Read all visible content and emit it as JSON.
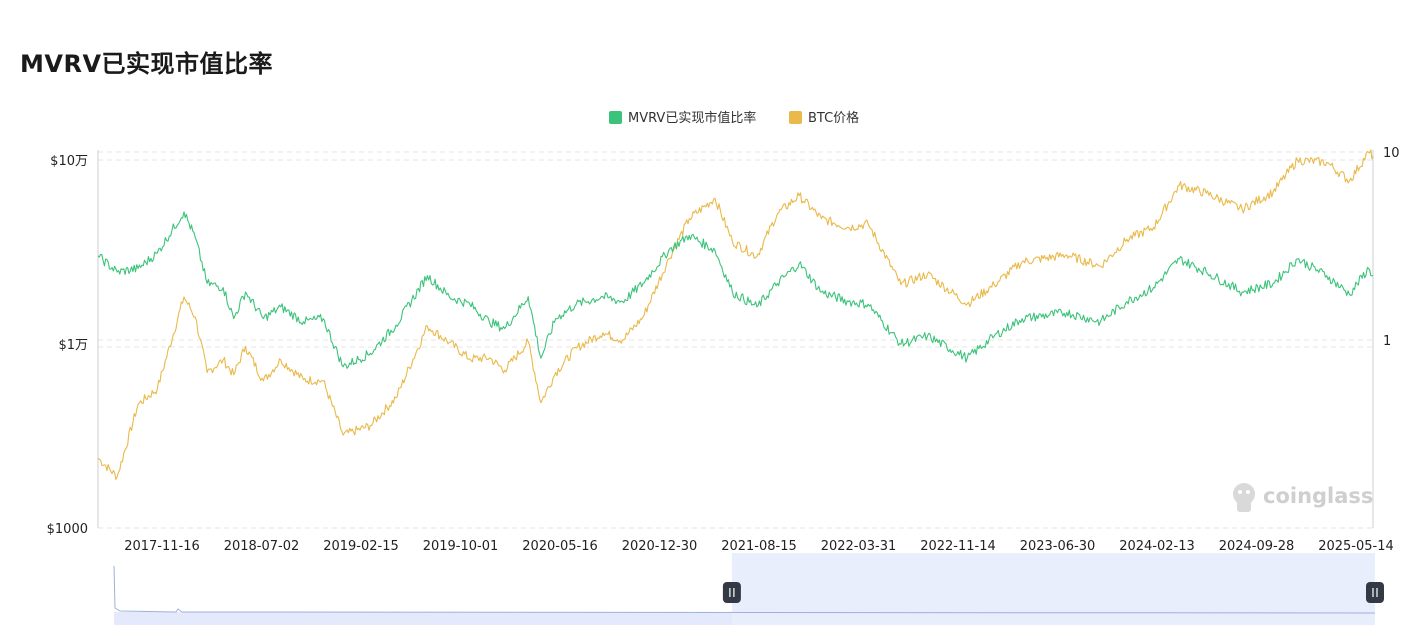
{
  "chart_data": {
    "type": "line",
    "title": "MVRV已实现市值比率",
    "legend_position": "top-center",
    "grid": true,
    "x_ticks": [
      "2017-11-16",
      "2018-07-02",
      "2019-02-15",
      "2019-10-01",
      "2020-05-16",
      "2020-12-30",
      "2021-08-15",
      "2022-03-31",
      "2022-11-14",
      "2023-06-30",
      "2024-02-13",
      "2024-09-28",
      "2025-05-14"
    ],
    "x_range": [
      "2017-06-01",
      "2025-06-01"
    ],
    "y_left": {
      "label": "",
      "scale": "log",
      "range": [
        1000,
        100000
      ],
      "ticks": [
        {
          "value": 100000,
          "label": "$10万"
        },
        {
          "value": 10000,
          "label": "$1万"
        },
        {
          "value": 1000,
          "label": "$1000"
        }
      ]
    },
    "y_right": {
      "label": "",
      "scale": "log",
      "ticks": [
        {
          "value": 10,
          "label": "10"
        },
        {
          "value": 1,
          "label": "1"
        }
      ]
    },
    "series": [
      {
        "name": "MVRV已实现市值比率",
        "color": "#3cc37a",
        "axis": "right",
        "points": [
          [
            "2017-06-01",
            2.8
          ],
          [
            "2017-07-15",
            2.3
          ],
          [
            "2017-09-01",
            2.4
          ],
          [
            "2017-10-15",
            2.9
          ],
          [
            "2017-12-15",
            4.8
          ],
          [
            "2018-01-10",
            3.5
          ],
          [
            "2018-02-06",
            2.0
          ],
          [
            "2018-03-15",
            1.9
          ],
          [
            "2018-04-08",
            1.3
          ],
          [
            "2018-05-05",
            1.8
          ],
          [
            "2018-06-15",
            1.3
          ],
          [
            "2018-07-25",
            1.5
          ],
          [
            "2018-09-15",
            1.25
          ],
          [
            "2018-10-30",
            1.3
          ],
          [
            "2018-12-15",
            0.72
          ],
          [
            "2019-02-15",
            0.85
          ],
          [
            "2019-04-15",
            1.2
          ],
          [
            "2019-06-26",
            2.2
          ],
          [
            "2019-08-15",
            1.7
          ],
          [
            "2019-10-01",
            1.55
          ],
          [
            "2019-11-15",
            1.25
          ],
          [
            "2019-12-20",
            1.15
          ],
          [
            "2020-02-12",
            1.7
          ],
          [
            "2020-03-12",
            0.8
          ],
          [
            "2020-04-15",
            1.3
          ],
          [
            "2020-06-01",
            1.55
          ],
          [
            "2020-08-01",
            1.7
          ],
          [
            "2020-09-15",
            1.6
          ],
          [
            "2020-11-01",
            2.0
          ],
          [
            "2020-12-30",
            3.0
          ],
          [
            "2021-02-15",
            3.6
          ],
          [
            "2021-04-15",
            3.0
          ],
          [
            "2021-05-25",
            1.8
          ],
          [
            "2021-07-20",
            1.5
          ],
          [
            "2021-09-05",
            2.0
          ],
          [
            "2021-10-25",
            2.55
          ],
          [
            "2021-12-15",
            1.8
          ],
          [
            "2022-02-15",
            1.6
          ],
          [
            "2022-04-01",
            1.55
          ],
          [
            "2022-06-15",
            0.95
          ],
          [
            "2022-08-15",
            1.05
          ],
          [
            "2022-11-14",
            0.8
          ],
          [
            "2023-01-15",
            1.05
          ],
          [
            "2023-03-20",
            1.3
          ],
          [
            "2023-06-30",
            1.4
          ],
          [
            "2023-09-15",
            1.25
          ],
          [
            "2023-11-15",
            1.6
          ],
          [
            "2024-01-15",
            1.9
          ],
          [
            "2024-03-14",
            2.7
          ],
          [
            "2024-05-15",
            2.3
          ],
          [
            "2024-08-05",
            1.8
          ],
          [
            "2024-10-15",
            2.0
          ],
          [
            "2024-12-10",
            2.7
          ],
          [
            "2025-02-15",
            2.2
          ],
          [
            "2025-04-08",
            1.75
          ],
          [
            "2025-05-22",
            2.4
          ],
          [
            "2025-06-01",
            2.2
          ]
        ]
      },
      {
        "name": "BTC价格",
        "color": "#e9b94a",
        "axis": "left",
        "points": [
          [
            "2017-06-01",
            2400
          ],
          [
            "2017-07-15",
            1900
          ],
          [
            "2017-09-01",
            4700
          ],
          [
            "2017-10-15",
            5700
          ],
          [
            "2017-12-15",
            18000
          ],
          [
            "2018-01-10",
            14000
          ],
          [
            "2018-02-06",
            7000
          ],
          [
            "2018-03-15",
            8200
          ],
          [
            "2018-04-08",
            6800
          ],
          [
            "2018-05-05",
            9700
          ],
          [
            "2018-06-15",
            6300
          ],
          [
            "2018-07-25",
            8200
          ],
          [
            "2018-09-15",
            6400
          ],
          [
            "2018-10-30",
            6300
          ],
          [
            "2018-12-15",
            3200
          ],
          [
            "2019-02-15",
            3600
          ],
          [
            "2019-04-15",
            5100
          ],
          [
            "2019-06-26",
            12500
          ],
          [
            "2019-08-15",
            10200
          ],
          [
            "2019-10-01",
            8300
          ],
          [
            "2019-11-15",
            8400
          ],
          [
            "2019-12-20",
            7200
          ],
          [
            "2020-02-12",
            10300
          ],
          [
            "2020-03-12",
            4800
          ],
          [
            "2020-04-15",
            7000
          ],
          [
            "2020-06-01",
            9500
          ],
          [
            "2020-08-01",
            11500
          ],
          [
            "2020-09-15",
            10500
          ],
          [
            "2020-11-01",
            14000
          ],
          [
            "2020-12-30",
            29000
          ],
          [
            "2021-02-15",
            48000
          ],
          [
            "2021-04-15",
            62000
          ],
          [
            "2021-05-25",
            36000
          ],
          [
            "2021-07-20",
            30000
          ],
          [
            "2021-09-05",
            51000
          ],
          [
            "2021-10-25",
            64000
          ],
          [
            "2021-12-15",
            48000
          ],
          [
            "2022-02-15",
            43000
          ],
          [
            "2022-04-01",
            45000
          ],
          [
            "2022-06-15",
            21000
          ],
          [
            "2022-08-15",
            24000
          ],
          [
            "2022-11-14",
            16500
          ],
          [
            "2023-01-15",
            21000
          ],
          [
            "2023-03-20",
            28000
          ],
          [
            "2023-06-30",
            30500
          ],
          [
            "2023-09-15",
            26500
          ],
          [
            "2023-11-15",
            37000
          ],
          [
            "2024-01-15",
            43000
          ],
          [
            "2024-03-14",
            73000
          ],
          [
            "2024-05-15",
            66000
          ],
          [
            "2024-08-05",
            54000
          ],
          [
            "2024-10-15",
            67000
          ],
          [
            "2024-12-10",
            100000
          ],
          [
            "2025-02-15",
            97000
          ],
          [
            "2025-04-08",
            77000
          ],
          [
            "2025-05-22",
            110000
          ],
          [
            "2025-06-01",
            105000
          ]
        ]
      }
    ],
    "watermark": "coinglass",
    "navigator": {
      "window_start_fraction": 0.49,
      "window_end_fraction": 1.0
    }
  }
}
